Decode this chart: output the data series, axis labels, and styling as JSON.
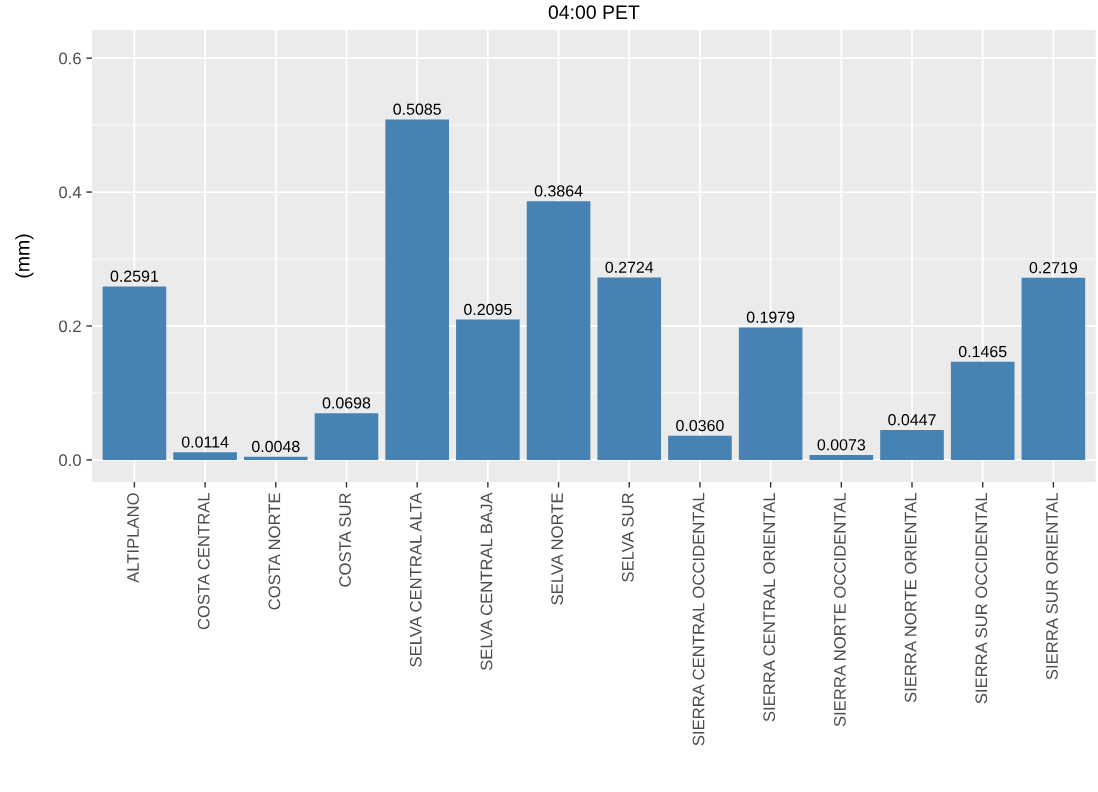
{
  "chart_data": {
    "type": "bar",
    "title": "04:00 PET",
    "ylabel": "(mm)",
    "categories": [
      "ALTIPLANO",
      "COSTA CENTRAL",
      "COSTA NORTE",
      "COSTA SUR",
      "SELVA CENTRAL ALTA",
      "SELVA CENTRAL BAJA",
      "SELVA NORTE",
      "SELVA SUR",
      "SIERRA CENTRAL OCCIDENTAL",
      "SIERRA CENTRAL ORIENTAL",
      "SIERRA NORTE OCCIDENTAL",
      "SIERRA NORTE ORIENTAL",
      "SIERRA SUR OCCIDENTAL",
      "SIERRA SUR ORIENTAL"
    ],
    "values": [
      0.2591,
      0.0114,
      0.0048,
      0.0698,
      0.5085,
      0.2095,
      0.3864,
      0.2724,
      0.036,
      0.1979,
      0.0073,
      0.0447,
      0.1465,
      0.2719
    ],
    "value_labels": [
      "0.2591",
      "0.0114",
      "0.0048",
      "0.0698",
      "0.5085",
      "0.2095",
      "0.3864",
      "0.2724",
      "0.0360",
      "0.1979",
      "0.0073",
      "0.0447",
      "0.1465",
      "0.2719"
    ],
    "color": "#4682b4",
    "ylim": [
      -0.033,
      0.642
    ],
    "yticks": [
      {
        "value": 0,
        "label": "0.0"
      },
      {
        "value": 0.2,
        "label": "0.2"
      },
      {
        "value": 0.4,
        "label": "0.4"
      },
      {
        "value": 0.6,
        "label": "0.6"
      }
    ],
    "grid": true
  }
}
